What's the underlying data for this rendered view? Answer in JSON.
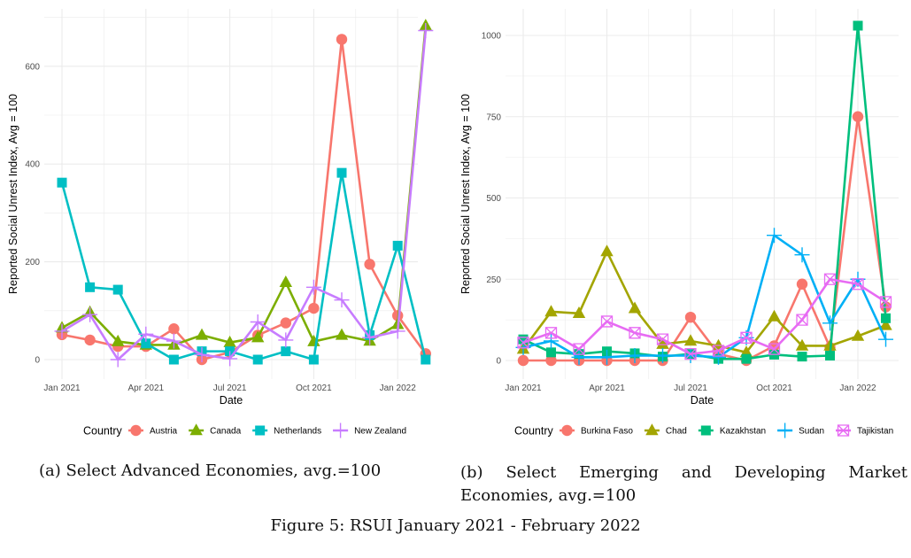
{
  "figure_caption": "Figure 5: RSUI January 2021 - February 2022",
  "chart_data": [
    {
      "type": "line",
      "caption": "(a) Select Advanced Economies, avg.=100",
      "xlabel": "Date",
      "ylabel": "Reported Social Unrest Index, Avg = 100",
      "x": [
        "2021-01",
        "2021-02",
        "2021-03",
        "2021-04",
        "2021-05",
        "2021-06",
        "2021-07",
        "2021-08",
        "2021-09",
        "2021-10",
        "2021-11",
        "2021-12",
        "2022-01",
        "2022-02"
      ],
      "x_ticks": [
        "Jan 2021",
        "Apr 2021",
        "Jul 2021",
        "Oct 2021",
        "Jan 2022"
      ],
      "x_tick_index": [
        0,
        3,
        6,
        9,
        12
      ],
      "y_ticks": [
        0,
        200,
        400,
        600
      ],
      "ylim": [
        -40,
        710
      ],
      "grid": true,
      "legend_title": "Country",
      "legend_position": "bottom",
      "series": [
        {
          "name": "Austria",
          "color": "#F8766D",
          "marker": "circle",
          "values": [
            51,
            40,
            27,
            27,
            63,
            0,
            15,
            50,
            75,
            105,
            655,
            195,
            90,
            12
          ]
        },
        {
          "name": "Canada",
          "color": "#7CAE00",
          "marker": "triangle",
          "values": [
            65,
            97,
            37,
            30,
            30,
            50,
            35,
            45,
            158,
            37,
            50,
            38,
            72,
            683
          ]
        },
        {
          "name": "Netherlands",
          "color": "#00BFC4",
          "marker": "square",
          "values": [
            362,
            148,
            143,
            33,
            0,
            17,
            17,
            0,
            17,
            0,
            382,
            50,
            233,
            0
          ]
        },
        {
          "name": "New Zealand",
          "color": "#C77CFF",
          "marker": "plus",
          "values": [
            58,
            92,
            0,
            52,
            38,
            10,
            2,
            77,
            40,
            148,
            122,
            45,
            58,
            673
          ]
        }
      ]
    },
    {
      "type": "line",
      "caption": "(b) Select Emerging and Developing Market Economies, avg.=100",
      "xlabel": "Date",
      "ylabel": "Reported Social Unrest Index, Avg = 100",
      "x": [
        "2021-01",
        "2021-02",
        "2021-03",
        "2021-04",
        "2021-05",
        "2021-06",
        "2021-07",
        "2021-08",
        "2021-09",
        "2021-10",
        "2021-11",
        "2021-12",
        "2022-01",
        "2022-02"
      ],
      "x_ticks": [
        "Jan 2021",
        "Apr 2021",
        "Jul 2021",
        "Oct 2021",
        "Jan 2022"
      ],
      "x_tick_index": [
        0,
        3,
        6,
        9,
        12
      ],
      "y_ticks": [
        0,
        250,
        500,
        750,
        1000
      ],
      "ylim": [
        -60,
        1090
      ],
      "grid": true,
      "legend_title": "Country",
      "legend_position": "bottom",
      "series": [
        {
          "name": "Burkina Faso",
          "color": "#F8766D",
          "marker": "circle",
          "values": [
            0,
            0,
            0,
            0,
            0,
            0,
            133,
            20,
            0,
            45,
            235,
            40,
            750,
            165
          ]
        },
        {
          "name": "Chad",
          "color": "#A3A500",
          "marker": "triangle",
          "values": [
            35,
            150,
            145,
            335,
            160,
            50,
            60,
            45,
            25,
            135,
            45,
            45,
            75,
            108
          ]
        },
        {
          "name": "Kazakhstan",
          "color": "#00BF7D",
          "marker": "square",
          "values": [
            65,
            25,
            20,
            28,
            22,
            12,
            20,
            5,
            5,
            18,
            12,
            15,
            1030,
            130
          ]
        },
        {
          "name": "Sudan",
          "color": "#00B0F6",
          "marker": "plus",
          "values": [
            40,
            60,
            10,
            10,
            15,
            15,
            15,
            10,
            70,
            385,
            325,
            115,
            250,
            65
          ]
        },
        {
          "name": "Tajikistan",
          "color": "#E76BF3",
          "marker": "boxx",
          "values": [
            55,
            85,
            35,
            120,
            85,
            65,
            20,
            30,
            70,
            35,
            125,
            250,
            235,
            180
          ]
        }
      ]
    }
  ]
}
